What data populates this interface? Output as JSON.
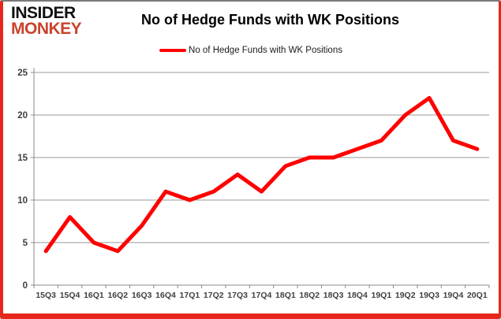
{
  "branding": {
    "logo_line1": "INSIDER",
    "logo_line2": "MONKEY",
    "logo_line1_color": "#111111",
    "logo_line2_color": "#c7432c"
  },
  "header": {
    "title": "No of Hedge Funds with WK Positions"
  },
  "legend": {
    "label": "No of Hedge Funds with WK Positions",
    "swatch_color": "#ff0000"
  },
  "chart_data": {
    "type": "line",
    "title": "No of Hedge Funds with WK Positions",
    "categories": [
      "15Q3",
      "15Q4",
      "16Q1",
      "16Q2",
      "16Q3",
      "16Q4",
      "17Q1",
      "17Q2",
      "17Q3",
      "17Q4",
      "18Q1",
      "18Q2",
      "18Q3",
      "18Q4",
      "19Q1",
      "19Q2",
      "19Q3",
      "19Q4",
      "20Q1"
    ],
    "series": [
      {
        "name": "No of Hedge Funds with WK Positions",
        "color": "#ff0000",
        "values": [
          4,
          8,
          5,
          4,
          7,
          11,
          10,
          11,
          13,
          11,
          14,
          15,
          15,
          16,
          17,
          20,
          22,
          17,
          16
        ]
      }
    ],
    "xlabel": "",
    "ylabel": "",
    "ylim": [
      0,
      25
    ],
    "yticks": [
      0,
      5,
      10,
      15,
      20,
      25
    ],
    "grid": "horizontal",
    "legend_position": "top"
  },
  "colors": {
    "line": "#ff0000",
    "grid": "#9a9a9a",
    "axis": "#8a8a8a",
    "tick_text": "#3f3f3f",
    "frame_red": "#e6261c",
    "frame_gray": "#787878"
  }
}
